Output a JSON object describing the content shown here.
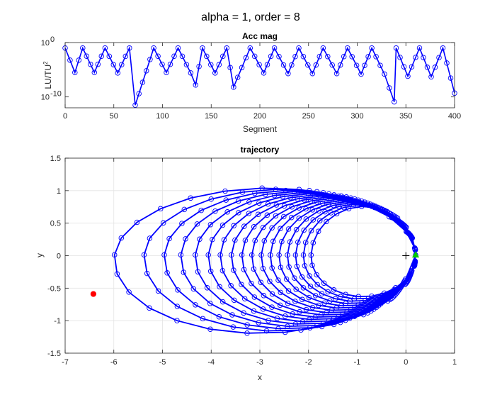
{
  "figure": {
    "title": "alpha = 1, order = 8"
  },
  "colors": {
    "line": "#0000ff",
    "axis": "#262626",
    "grid": "#e3e3e3",
    "start_marker": "#ff0000",
    "end_marker": "#00cc00",
    "center_marker": "#000000"
  },
  "chart_data": [
    {
      "type": "line",
      "title": "Acc mag",
      "xlabel": "Segment",
      "ylabel_base": "LU/TU",
      "ylabel_sup": "2",
      "yscale": "log",
      "xlim": [
        0,
        400
      ],
      "ylim_exp": [
        -12,
        0
      ],
      "xticks": [
        0,
        50,
        100,
        150,
        200,
        250,
        300,
        350,
        400
      ],
      "xtick_labels": [
        "0",
        "50",
        "100",
        "150",
        "200",
        "250",
        "300",
        "350",
        "400"
      ],
      "yticks_exp": [
        -10,
        0
      ],
      "ytick_labels": [
        {
          "base": "10",
          "exp": "-10"
        },
        {
          "base": "10",
          "exp": "0"
        }
      ],
      "grid": false,
      "marker": "open circle",
      "series": [
        {
          "peaks_log10": -1,
          "peak_segments": [
            0,
            18,
            41,
            66,
            91,
            116,
            141,
            166,
            190,
            215,
            240,
            265,
            290,
            315,
            340,
            364,
            388
          ],
          "dip_segments": [
            10,
            30,
            54,
            72,
            104,
            129,
            134,
            154,
            173,
            204,
            229,
            254,
            279,
            304,
            328,
            338,
            352,
            376,
            400
          ],
          "dips_log10": [
            -5.5,
            -5.5,
            -5.6,
            -11.5,
            -5.5,
            -5.6,
            -7.8,
            -5.6,
            -8.2,
            -5.6,
            -5.7,
            -5.7,
            -5.7,
            -5.8,
            -5.8,
            -10.9,
            -6.2,
            -6.3,
            -9.3
          ]
        }
      ]
    },
    {
      "type": "line",
      "title": "trajectory",
      "xlabel": "x",
      "ylabel": "y",
      "xlim": [
        -7,
        1
      ],
      "ylim": [
        -1.5,
        1.5
      ],
      "xticks": [
        -7,
        -6,
        -5,
        -4,
        -3,
        -2,
        -1,
        0,
        1
      ],
      "xtick_labels": [
        "-7",
        "-6",
        "-5",
        "-4",
        "-3",
        "-2",
        "-1",
        "0",
        "1"
      ],
      "yticks": [
        -1.5,
        -1,
        -0.5,
        0,
        0.5,
        1,
        1.5
      ],
      "ytick_labels": [
        "-1.5",
        "-1",
        "-0.5",
        "0",
        "0.5",
        "1",
        "1.5"
      ],
      "grid": true,
      "marker": "open circle",
      "spiral": {
        "loops": 17,
        "outer_left_x": -6.55,
        "inner_left_x": -1.85,
        "outer_top_y": 1.05,
        "inner_top_y": 0.75,
        "outer_bottom_y": -1.2,
        "inner_bottom_y": -0.6,
        "right_x": 0.2,
        "points_per_loop": 25
      },
      "start_point": {
        "x": -6.42,
        "y": -0.59,
        "label": "start"
      },
      "end_point": {
        "x": 0.2,
        "y": 0.01,
        "label": "end"
      },
      "center_point": {
        "x": 0,
        "y": 0,
        "label": "central body"
      }
    }
  ]
}
